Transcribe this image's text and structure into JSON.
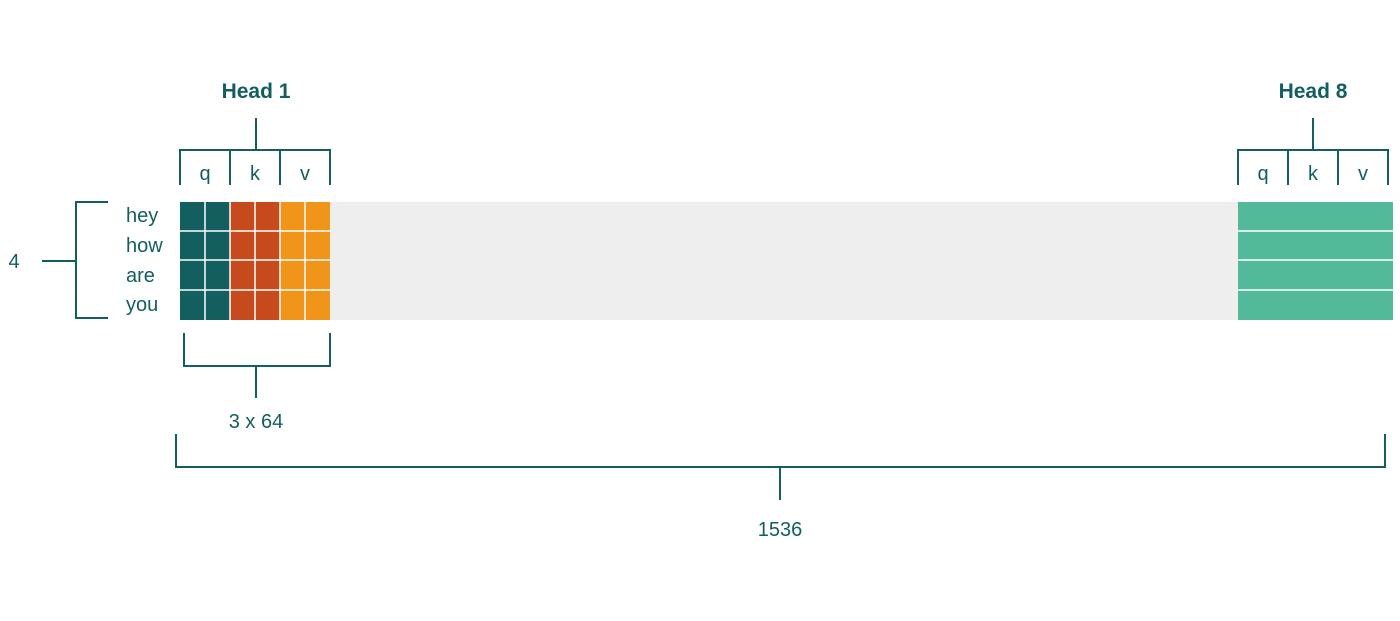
{
  "heads": [
    {
      "title": "Head 1",
      "parts": [
        "q",
        "k",
        "v"
      ]
    },
    {
      "title": "Head 8",
      "parts": [
        "q",
        "k",
        "v"
      ]
    }
  ],
  "tokens": [
    "hey",
    "how",
    "are",
    "you"
  ],
  "row_count_label": "4",
  "head_width_label": "3 x 64",
  "total_width_label": "1536",
  "colors": {
    "q": "#135f5f",
    "k": "#c64a1b",
    "v": "#f0951a",
    "head8": "#52b99a",
    "track": "#eeeeee",
    "ink": "#135f5f"
  }
}
